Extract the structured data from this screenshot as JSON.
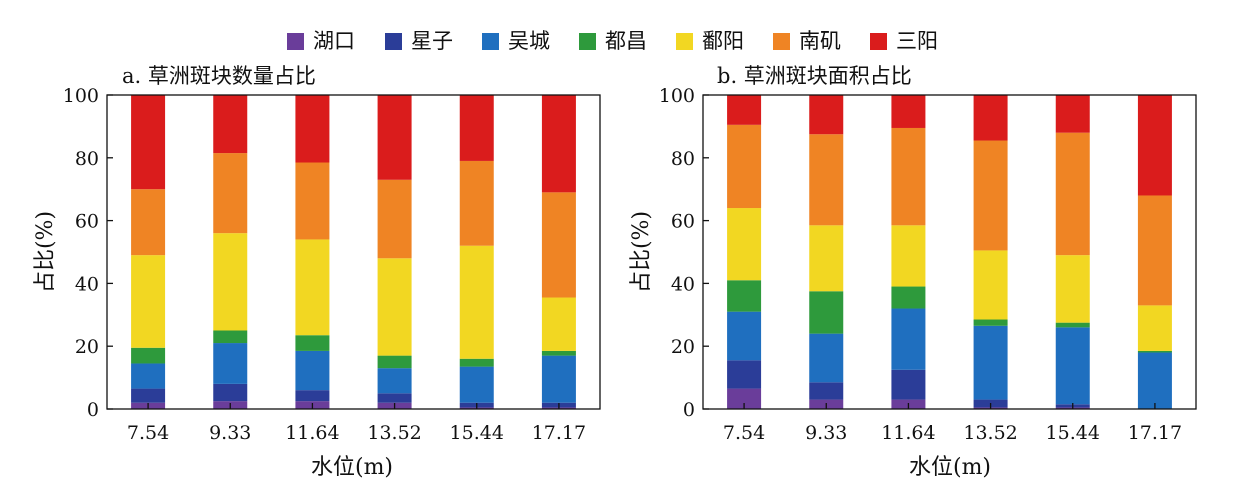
{
  "legend": {
    "items": [
      {
        "label": "湖口",
        "color": "#6a3d9a"
      },
      {
        "label": "星子",
        "color": "#2b3d98"
      },
      {
        "label": "吴城",
        "color": "#1f6fbf"
      },
      {
        "label": "都昌",
        "color": "#2e9a3c"
      },
      {
        "label": "鄱阳",
        "color": "#f2d722"
      },
      {
        "label": "南矶",
        "color": "#ef8424"
      },
      {
        "label": "三阳",
        "color": "#da1c1c"
      }
    ]
  },
  "chart_data": [
    {
      "type": "bar",
      "stacked": true,
      "title": "a. 草洲斑块数量占比",
      "xlabel": "水位(m)",
      "ylabel": "占比(%)",
      "ylim": [
        0,
        100
      ],
      "yticks": [
        "0",
        "20",
        "40",
        "60",
        "80",
        "100"
      ],
      "categories": [
        "7.54",
        "9.33",
        "11.64",
        "13.52",
        "15.44",
        "17.17"
      ],
      "series": [
        {
          "name": "湖口",
          "values": [
            2,
            2.5,
            2.5,
            2,
            0.5,
            0.5
          ]
        },
        {
          "name": "星子",
          "values": [
            4.5,
            5.5,
            3.5,
            3,
            1.5,
            1.5
          ]
        },
        {
          "name": "吴城",
          "values": [
            8,
            13,
            12.5,
            8,
            11.5,
            15
          ]
        },
        {
          "name": "都昌",
          "values": [
            5,
            4,
            5,
            4,
            2.5,
            1.5
          ]
        },
        {
          "name": "鄱阳",
          "values": [
            29.5,
            31,
            30.5,
            31,
            36,
            17
          ]
        },
        {
          "name": "南矶",
          "values": [
            21,
            25.5,
            24.5,
            25,
            27,
            33.5
          ]
        },
        {
          "name": "三阳",
          "values": [
            30,
            18.5,
            21.5,
            27,
            21,
            31
          ]
        }
      ]
    },
    {
      "type": "bar",
      "stacked": true,
      "title": "b. 草洲斑块面积占比",
      "xlabel": "水位(m)",
      "ylabel": "占比(%)",
      "ylim": [
        0,
        100
      ],
      "yticks": [
        "0",
        "20",
        "40",
        "60",
        "80",
        "100"
      ],
      "categories": [
        "7.54",
        "9.33",
        "11.64",
        "13.52",
        "15.44",
        "17.17"
      ],
      "series": [
        {
          "name": "湖口",
          "values": [
            6.5,
            3,
            3,
            0.5,
            0.5,
            0
          ]
        },
        {
          "name": "星子",
          "values": [
            9,
            5.5,
            9.5,
            2.5,
            1,
            0
          ]
        },
        {
          "name": "吴城",
          "values": [
            15.5,
            15.5,
            19.5,
            23.5,
            24.5,
            18
          ]
        },
        {
          "name": "都昌",
          "values": [
            10,
            13.5,
            7,
            2,
            1.5,
            0.5
          ]
        },
        {
          "name": "鄱阳",
          "values": [
            23,
            21,
            19.5,
            22,
            21.5,
            14.5
          ]
        },
        {
          "name": "南矶",
          "values": [
            26.5,
            29,
            31,
            35,
            39,
            35
          ]
        },
        {
          "name": "三阳",
          "values": [
            9.5,
            12.5,
            10.5,
            14.5,
            12,
            32
          ]
        }
      ]
    }
  ]
}
